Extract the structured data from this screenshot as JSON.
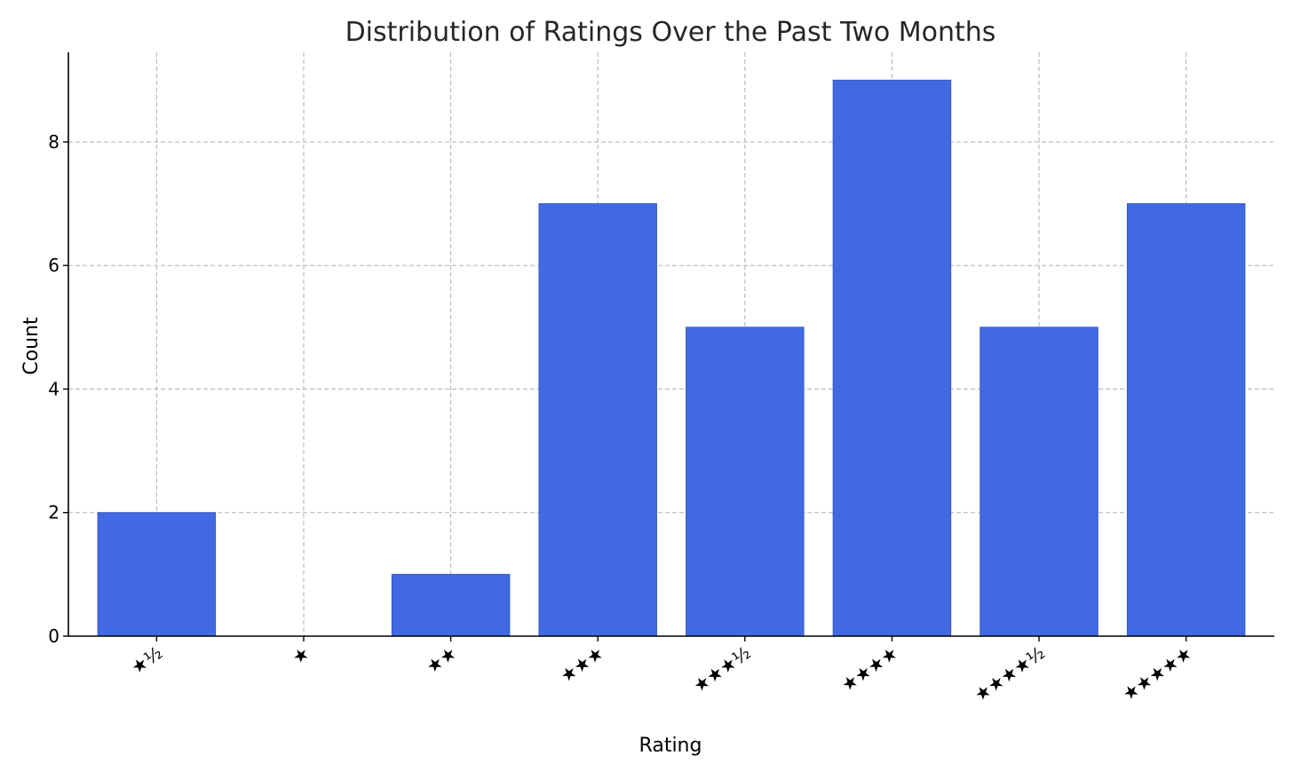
{
  "chart_data": {
    "type": "bar",
    "title": "Distribution of Ratings Over the Past Two Months",
    "xlabel": "Rating",
    "ylabel": "Count",
    "categories": [
      "★½",
      "★",
      "★★",
      "★★★",
      "★★★½",
      "★★★★",
      "★★★★½",
      "★★★★★"
    ],
    "values": [
      2,
      0,
      1,
      7,
      5,
      9,
      5,
      7
    ],
    "ylim": [
      0,
      9.45
    ],
    "yticks": [
      0,
      2,
      4,
      6,
      8
    ],
    "grid": true,
    "legend": "none",
    "bar_color": "#4169e1",
    "bar_edge_color": "#3558c8"
  }
}
